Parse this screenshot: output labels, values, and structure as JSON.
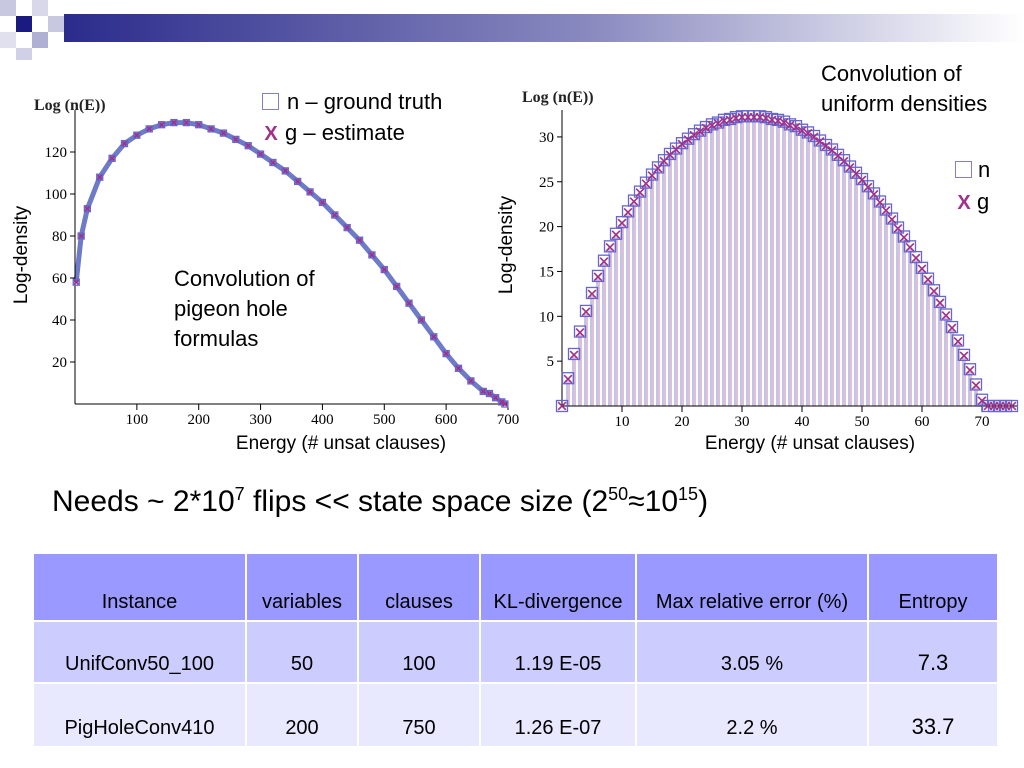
{
  "headline": {
    "prefix": "Needs ~ 2*10",
    "exp1": "7",
    "middle": " flips << state space size (2",
    "exp2": "50",
    "approx": "≈10",
    "exp3": "15",
    "suffix": ")"
  },
  "legend": {
    "n_label": "n – ground truth",
    "g_label": "g – estimate",
    "n_short": "n",
    "g_short": "g"
  },
  "annotations": {
    "left_note": [
      "Convolution of",
      "pigeon hole",
      "formulas"
    ],
    "right_note": [
      "Convolution of",
      "uniform densities"
    ]
  },
  "colors": {
    "n_marker": "#6666cc",
    "g_marker": "#a0308a",
    "curve": "#4a5ab8",
    "table_header": "#9999ff",
    "table_row1": "#ccccff",
    "table_row2": "#e8e8ff"
  },
  "chart_data": [
    {
      "type": "scatter",
      "title": "",
      "plot_label": "Log (n(E))",
      "xlabel": "Energy (# unsat clauses)",
      "ylabel": "Log-density",
      "xlim": [
        0,
        700
      ],
      "ylim": [
        0,
        140
      ],
      "xticks": [
        100,
        200,
        300,
        400,
        500,
        600,
        700
      ],
      "yticks": [
        20,
        40,
        60,
        80,
        100,
        120
      ],
      "series": [
        {
          "name": "n – ground truth",
          "marker": "square",
          "x": [
            2,
            10,
            20,
            40,
            60,
            80,
            100,
            120,
            140,
            160,
            180,
            200,
            220,
            240,
            260,
            280,
            300,
            320,
            340,
            360,
            380,
            400,
            420,
            440,
            460,
            480,
            500,
            520,
            540,
            560,
            580,
            600,
            620,
            640,
            660,
            670,
            680,
            690,
            695
          ],
          "y": [
            58,
            80,
            93,
            108,
            117,
            124,
            128,
            131,
            133,
            134,
            134,
            133,
            131,
            129,
            126,
            123,
            119,
            115,
            111,
            106,
            101,
            96,
            90,
            84,
            78,
            71,
            64,
            56,
            48,
            40,
            32,
            24,
            17,
            11,
            6,
            5,
            3,
            1,
            0
          ]
        },
        {
          "name": "g – estimate",
          "marker": "x",
          "x": [
            2,
            10,
            20,
            40,
            60,
            80,
            100,
            120,
            140,
            160,
            180,
            200,
            220,
            240,
            260,
            280,
            300,
            320,
            340,
            360,
            380,
            400,
            420,
            440,
            460,
            480,
            500,
            520,
            540,
            560,
            580,
            600,
            620,
            640,
            660,
            670,
            680,
            690,
            695
          ],
          "y": [
            58,
            80,
            93,
            108,
            117,
            124,
            128,
            131,
            133,
            134,
            134,
            133,
            131,
            129,
            126,
            123,
            119,
            115,
            111,
            106,
            101,
            96,
            90,
            84,
            78,
            71,
            64,
            56,
            48,
            40,
            32,
            24,
            17,
            11,
            6,
            5,
            3,
            1,
            0
          ]
        }
      ]
    },
    {
      "type": "scatter",
      "title": "",
      "plot_label": "Log (n(E))",
      "xlabel": "Energy (# unsat clauses)",
      "ylabel": "Log-density",
      "xlim": [
        0,
        76
      ],
      "ylim": [
        0,
        33
      ],
      "xticks": [
        10,
        20,
        30,
        40,
        50,
        60,
        70
      ],
      "yticks": [
        5,
        10,
        15,
        20,
        25,
        30
      ],
      "series": [
        {
          "name": "n",
          "marker": "square",
          "x": [
            0,
            1,
            2,
            3,
            4,
            5,
            6,
            7,
            8,
            9,
            10,
            11,
            12,
            13,
            14,
            15,
            16,
            17,
            18,
            19,
            20,
            21,
            22,
            23,
            24,
            25,
            26,
            27,
            28,
            29,
            30,
            31,
            32,
            33,
            34,
            35,
            36,
            37,
            38,
            39,
            40,
            41,
            42,
            43,
            44,
            45,
            46,
            47,
            48,
            49,
            50,
            51,
            52,
            53,
            54,
            55,
            56,
            57,
            58,
            59,
            60,
            61,
            62,
            63,
            64,
            65,
            66,
            67,
            68,
            69,
            70,
            71,
            72,
            73,
            74,
            75
          ],
          "y": [
            0,
            3.1,
            5.8,
            8.3,
            10.6,
            12.6,
            14.5,
            16.2,
            17.8,
            19.2,
            20.5,
            21.7,
            22.9,
            23.9,
            24.9,
            25.8,
            26.6,
            27.4,
            28.1,
            28.7,
            29.3,
            29.8,
            30.3,
            30.7,
            31.1,
            31.4,
            31.6,
            31.9,
            32.0,
            32.2,
            32.3,
            32.3,
            32.3,
            32.3,
            32.2,
            32.0,
            31.9,
            31.7,
            31.4,
            31.2,
            30.8,
            30.5,
            30.1,
            29.6,
            29.1,
            28.6,
            28.0,
            27.4,
            26.7,
            26.0,
            25.3,
            24.5,
            23.7,
            22.8,
            21.9,
            20.9,
            19.9,
            18.9,
            17.8,
            16.6,
            15.4,
            14.2,
            12.9,
            11.6,
            10.2,
            8.8,
            7.3,
            5.7,
            4.1,
            2.4,
            0.7,
            0,
            0,
            0,
            0,
            0
          ]
        },
        {
          "name": "g",
          "marker": "x",
          "x": [
            0,
            1,
            2,
            3,
            4,
            5,
            6,
            7,
            8,
            9,
            10,
            11,
            12,
            13,
            14,
            15,
            16,
            17,
            18,
            19,
            20,
            21,
            22,
            23,
            24,
            25,
            26,
            27,
            28,
            29,
            30,
            31,
            32,
            33,
            34,
            35,
            36,
            37,
            38,
            39,
            40,
            41,
            42,
            43,
            44,
            45,
            46,
            47,
            48,
            49,
            50,
            51,
            52,
            53,
            54,
            55,
            56,
            57,
            58,
            59,
            60,
            61,
            62,
            63,
            64,
            65,
            66,
            67,
            68,
            69,
            70,
            71,
            72,
            73,
            74,
            75
          ],
          "y": [
            0,
            3.0,
            5.7,
            8.2,
            10.5,
            12.5,
            14.4,
            16.1,
            17.7,
            19.1,
            20.4,
            21.6,
            22.8,
            23.8,
            24.8,
            25.7,
            26.5,
            27.3,
            28.0,
            28.6,
            29.2,
            29.7,
            30.2,
            30.6,
            31.0,
            31.3,
            31.5,
            31.8,
            31.9,
            32.1,
            32.2,
            32.2,
            32.2,
            32.2,
            32.1,
            31.9,
            31.8,
            31.6,
            31.3,
            31.1,
            30.7,
            30.4,
            30.0,
            29.5,
            29.0,
            28.5,
            27.9,
            27.3,
            26.6,
            25.9,
            25.2,
            24.4,
            23.6,
            22.7,
            21.8,
            20.8,
            19.8,
            18.8,
            17.7,
            16.5,
            15.3,
            14.1,
            12.8,
            11.5,
            10.1,
            8.7,
            7.2,
            5.6,
            4.0,
            2.3,
            0.6,
            0,
            0,
            0,
            0,
            0
          ]
        }
      ]
    },
    {
      "type": "table",
      "columns": [
        "Instance",
        "variables",
        "clauses",
        "KL-divergence",
        "Max relative error (%)",
        "Entropy"
      ],
      "rows": [
        [
          "UnifConv50_100",
          "50",
          "100",
          "1.19 E-05",
          "3.05 %",
          "7.3"
        ],
        [
          "PigHoleConv410",
          "200",
          "750",
          "1.26 E-07",
          "2.2 %",
          "33.7"
        ]
      ]
    }
  ]
}
